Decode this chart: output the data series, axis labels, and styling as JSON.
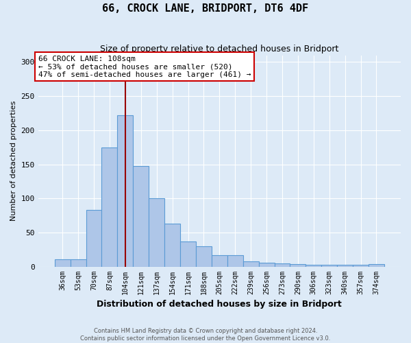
{
  "title": "66, CROCK LANE, BRIDPORT, DT6 4DF",
  "subtitle": "Size of property relative to detached houses in Bridport",
  "xlabel": "Distribution of detached houses by size in Bridport",
  "ylabel": "Number of detached properties",
  "categories": [
    "36sqm",
    "53sqm",
    "70sqm",
    "87sqm",
    "104sqm",
    "121sqm",
    "137sqm",
    "154sqm",
    "171sqm",
    "188sqm",
    "205sqm",
    "222sqm",
    "239sqm",
    "256sqm",
    "273sqm",
    "290sqm",
    "306sqm",
    "323sqm",
    "340sqm",
    "357sqm",
    "374sqm"
  ],
  "values": [
    11,
    11,
    83,
    175,
    222,
    148,
    100,
    63,
    37,
    30,
    17,
    17,
    8,
    6,
    5,
    4,
    3,
    3,
    3,
    3,
    4
  ],
  "bar_color": "#aec6e8",
  "bar_edge_color": "#5b9bd5",
  "bg_color": "#ddeaf7",
  "grid_color": "#ffffff",
  "property_bin_index": 4,
  "vline_color": "#990000",
  "annotation_line1": "66 CROCK LANE: 108sqm",
  "annotation_line2": "← 53% of detached houses are smaller (520)",
  "annotation_line3": "47% of semi-detached houses are larger (461) →",
  "annotation_box_color": "#ffffff",
  "annotation_box_edge": "#cc0000",
  "footer_line1": "Contains HM Land Registry data © Crown copyright and database right 2024.",
  "footer_line2": "Contains public sector information licensed under the Open Government Licence v3.0.",
  "ylim": [
    0,
    310
  ],
  "yticks": [
    0,
    50,
    100,
    150,
    200,
    250,
    300
  ]
}
